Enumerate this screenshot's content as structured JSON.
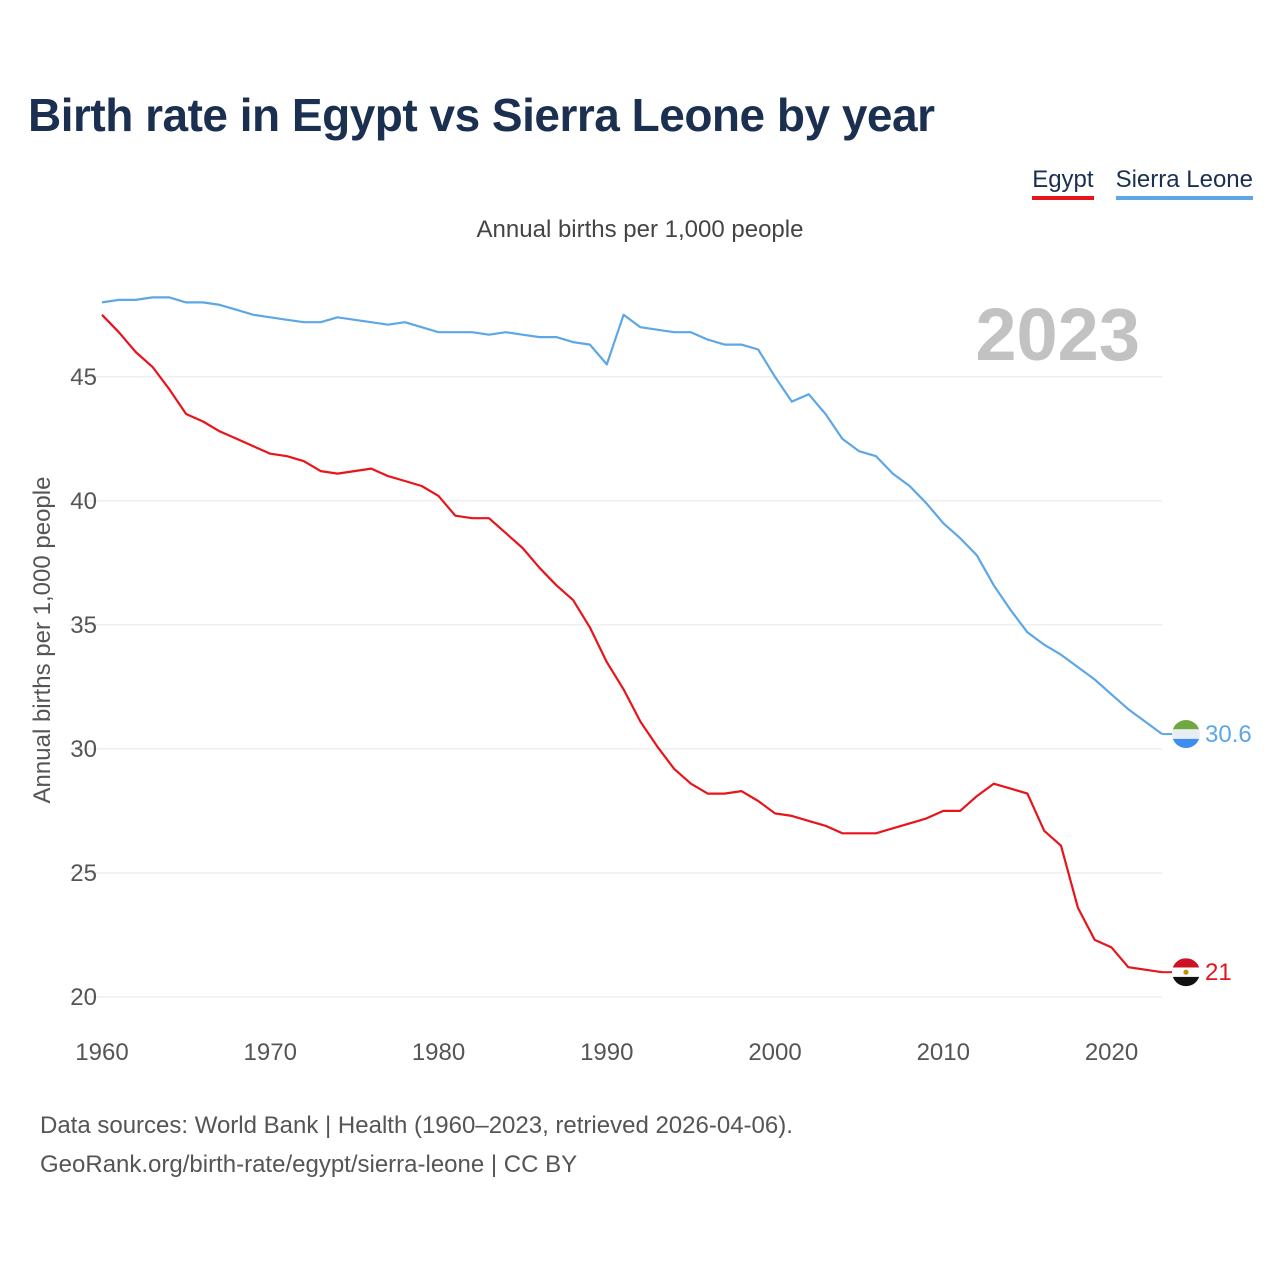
{
  "title": "Birth rate in Egypt vs Sierra Leone by year",
  "subtitle": "Annual births per 1,000 people",
  "legend": [
    {
      "label": "Egypt",
      "color": "#e8141b"
    },
    {
      "label": "Sierra Leone",
      "color": "#5da7e6"
    }
  ],
  "footer": {
    "line1": "Data sources: World Bank | Health (1960–2023, retrieved 2026-04-06).",
    "line2": "GeoRank.org/birth-rate/egypt/sierra-leone | CC BY"
  },
  "chart_data": {
    "type": "line",
    "year_label": "2023",
    "ylabel": "Annual births per 1,000 people",
    "xlim": [
      1960,
      2023
    ],
    "ylim": [
      20,
      48.5
    ],
    "x_ticks": [
      1960,
      1970,
      1980,
      1990,
      2000,
      2010,
      2020
    ],
    "y_ticks": [
      20,
      25,
      30,
      35,
      40,
      45
    ],
    "x": [
      1960,
      1961,
      1962,
      1963,
      1964,
      1965,
      1966,
      1967,
      1968,
      1969,
      1970,
      1971,
      1972,
      1973,
      1974,
      1975,
      1976,
      1977,
      1978,
      1979,
      1980,
      1981,
      1982,
      1983,
      1984,
      1985,
      1986,
      1987,
      1988,
      1989,
      1990,
      1991,
      1992,
      1993,
      1994,
      1995,
      1996,
      1997,
      1998,
      1999,
      2000,
      2001,
      2002,
      2003,
      2004,
      2005,
      2006,
      2007,
      2008,
      2009,
      2010,
      2011,
      2012,
      2013,
      2014,
      2015,
      2016,
      2017,
      2018,
      2019,
      2020,
      2021,
      2022,
      2023
    ],
    "series": [
      {
        "name": "Egypt",
        "color": "#e8141b",
        "end_label": "21",
        "values": [
          47.5,
          46.8,
          46.0,
          45.4,
          44.5,
          43.5,
          43.2,
          42.8,
          42.5,
          42.2,
          41.9,
          41.8,
          41.6,
          41.2,
          41.1,
          41.2,
          41.3,
          41.0,
          40.8,
          40.6,
          40.2,
          39.4,
          39.3,
          39.3,
          38.7,
          38.1,
          37.3,
          36.6,
          36.0,
          34.9,
          33.5,
          32.4,
          31.1,
          30.1,
          29.2,
          28.6,
          28.2,
          28.2,
          28.3,
          27.9,
          27.4,
          27.3,
          27.1,
          26.9,
          26.6,
          26.6,
          26.6,
          26.8,
          27.0,
          27.2,
          27.5,
          27.5,
          28.1,
          28.6,
          28.4,
          28.2,
          26.7,
          26.1,
          23.6,
          22.3,
          22.0,
          21.2,
          21.1,
          21.0
        ]
      },
      {
        "name": "Sierra Leone",
        "color": "#5da7e6",
        "end_label": "30.6",
        "values": [
          48.0,
          48.1,
          48.1,
          48.2,
          48.2,
          48.0,
          48.0,
          47.9,
          47.7,
          47.5,
          47.4,
          47.3,
          47.2,
          47.2,
          47.4,
          47.3,
          47.2,
          47.1,
          47.2,
          47.0,
          46.8,
          46.8,
          46.8,
          46.7,
          46.8,
          46.7,
          46.6,
          46.6,
          46.4,
          46.3,
          45.5,
          47.5,
          47.0,
          46.9,
          46.8,
          46.8,
          46.5,
          46.3,
          46.3,
          46.1,
          45.0,
          44.0,
          44.3,
          43.5,
          42.5,
          42.0,
          41.8,
          41.1,
          40.6,
          39.9,
          39.1,
          38.5,
          37.8,
          36.6,
          35.6,
          34.7,
          34.2,
          33.8,
          33.3,
          32.8,
          32.2,
          31.6,
          31.1,
          30.6
        ]
      }
    ]
  }
}
